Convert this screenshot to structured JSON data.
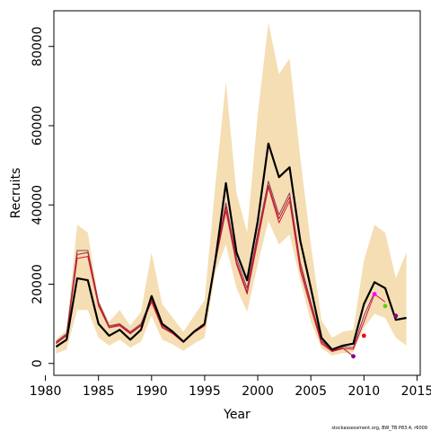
{
  "chart_data": {
    "type": "line",
    "xlabel": "Year",
    "ylabel": "Recruits",
    "footnote": "stockassessment.org, BW_TB P83.4, r6009",
    "xlim": [
      1980.8,
      2015.3
    ],
    "ylim": [
      -3000,
      89000
    ],
    "xticks": [
      1980,
      1985,
      1990,
      1995,
      2000,
      2005,
      2010,
      2015
    ],
    "yticks": [
      0,
      20000,
      40000,
      60000,
      80000
    ],
    "xtick_labels": [
      "1980",
      "1985",
      "1990",
      "1995",
      "2000",
      "2005",
      "2010",
      "2015"
    ],
    "ytick_labels": [
      "0",
      "20000",
      "40000",
      "60000",
      "80000"
    ],
    "grid": false,
    "colors": {
      "band": "#f5deb3",
      "main": "#000000",
      "retro_a": "#dc143c",
      "retro_b": "#8b3a62",
      "retro_c": "#b22222"
    },
    "band": {
      "x": [
        1981,
        1982,
        1983,
        1984,
        1985,
        1986,
        1987,
        1988,
        1989,
        1990,
        1991,
        1992,
        1993,
        1994,
        1995,
        1996,
        1997,
        1998,
        1999,
        2000,
        2001,
        2002,
        2003,
        2004,
        2005,
        2006,
        2007,
        2008,
        2009,
        2010,
        2011,
        2012,
        2013,
        2014
      ],
      "upper": [
        6000,
        8500,
        35000,
        33000,
        16000,
        10500,
        13500,
        9500,
        13000,
        28000,
        15000,
        11500,
        8000,
        12000,
        16000,
        45000,
        71000,
        43000,
        33000,
        63000,
        86000,
        73000,
        77000,
        52000,
        30000,
        11000,
        6500,
        8000,
        8500,
        26000,
        35000,
        33000,
        21500,
        28000
      ],
      "lower": [
        2500,
        3500,
        13500,
        13500,
        6500,
        4500,
        6000,
        4000,
        5500,
        12000,
        6000,
        4800,
        3200,
        5000,
        6500,
        23000,
        30000,
        19000,
        13000,
        25000,
        36000,
        30000,
        32500,
        21000,
        10500,
        3800,
        2000,
        2600,
        2800,
        9000,
        12500,
        11500,
        6500,
        4500
      ]
    },
    "series": [
      {
        "color": "#000000",
        "x": [
          1981,
          1982,
          1983,
          1984,
          1985,
          1986,
          1987,
          1988,
          1989,
          1990,
          1991,
          1992,
          1993,
          1994,
          1995,
          1996,
          1997,
          1998,
          1999,
          2000,
          2001,
          2002,
          2003,
          2004,
          2005,
          2006,
          2007,
          2008,
          2009,
          2010,
          2011,
          2012,
          2013,
          2014
        ],
        "values": [
          4200,
          6000,
          21500,
          21000,
          10000,
          7000,
          8500,
          6000,
          8500,
          17000,
          10000,
          8000,
          5500,
          8000,
          10000,
          26000,
          45500,
          28000,
          21000,
          36000,
          55500,
          47000,
          49500,
          31000,
          19000,
          6500,
          3500,
          4500,
          5000,
          15000,
          20500,
          19000,
          11000,
          11500
        ]
      },
      {
        "color": "#dc143c",
        "x": [
          1981,
          1982,
          1983,
          1984,
          1985,
          1986,
          1987,
          1988,
          1989,
          1990,
          1991,
          1992,
          1993,
          1994,
          1995,
          1996,
          1997,
          1998,
          1999,
          2000,
          2001,
          2002,
          2003,
          2004,
          2005,
          2006,
          2007,
          2008,
          2009,
          2010,
          2011,
          2012
        ],
        "values": [
          5000,
          7000,
          26500,
          27000,
          14500,
          9000,
          9500,
          7500,
          9500,
          15500,
          9000,
          7500,
          5300,
          7800,
          9500,
          25500,
          38500,
          25000,
          17500,
          31000,
          44500,
          35500,
          41000,
          23500,
          14000,
          5000,
          3000,
          3700,
          3600,
          10500,
          17500,
          15500
        ]
      },
      {
        "color": "#8b3a62",
        "x": [
          1981,
          1982,
          1983,
          1984,
          1985,
          1986,
          1987,
          1988,
          1989,
          1990,
          1991,
          1992,
          1993,
          1994,
          1995,
          1996,
          1997,
          1998,
          1999,
          2000,
          2001,
          2002,
          2003,
          2004,
          2005,
          2006,
          2007,
          2008,
          2009,
          2010,
          2011
        ],
        "values": [
          5500,
          7500,
          28500,
          28500,
          15500,
          9500,
          10000,
          8000,
          10000,
          16500,
          9500,
          8000,
          5600,
          8200,
          10000,
          27000,
          40500,
          26500,
          19000,
          33000,
          46000,
          37500,
          43000,
          25500,
          15500,
          5800,
          3400,
          4200,
          4000,
          12000,
          18000
        ]
      },
      {
        "color": "#b22222",
        "x": [
          1981,
          1982,
          1983,
          1984,
          1985,
          1986,
          1987,
          1988,
          1989,
          1990,
          1991,
          1992,
          1993,
          1994,
          1995,
          1996,
          1997,
          1998,
          1999,
          2000,
          2001,
          2002,
          2003,
          2004,
          2005,
          2006,
          2007,
          2008,
          2009
        ],
        "values": [
          5200,
          7200,
          27500,
          28000,
          15000,
          9200,
          9800,
          7700,
          9700,
          16000,
          9200,
          7700,
          5400,
          8000,
          9700,
          26000,
          39500,
          25500,
          18000,
          32000,
          45000,
          36500,
          42000,
          24500,
          14800,
          5400,
          3200,
          3900,
          1800
        ]
      }
    ],
    "endpoints": [
      {
        "year": 2009,
        "value": 1800,
        "color": "#8b008b"
      },
      {
        "year": 2010,
        "value": 7000,
        "color": "#ff0000"
      },
      {
        "year": 2011,
        "value": 17500,
        "color": "#ff00ff"
      },
      {
        "year": 2012,
        "value": 14500,
        "color": "#66cc00"
      },
      {
        "year": 2013,
        "value": 12000,
        "color": "#800080"
      }
    ]
  }
}
